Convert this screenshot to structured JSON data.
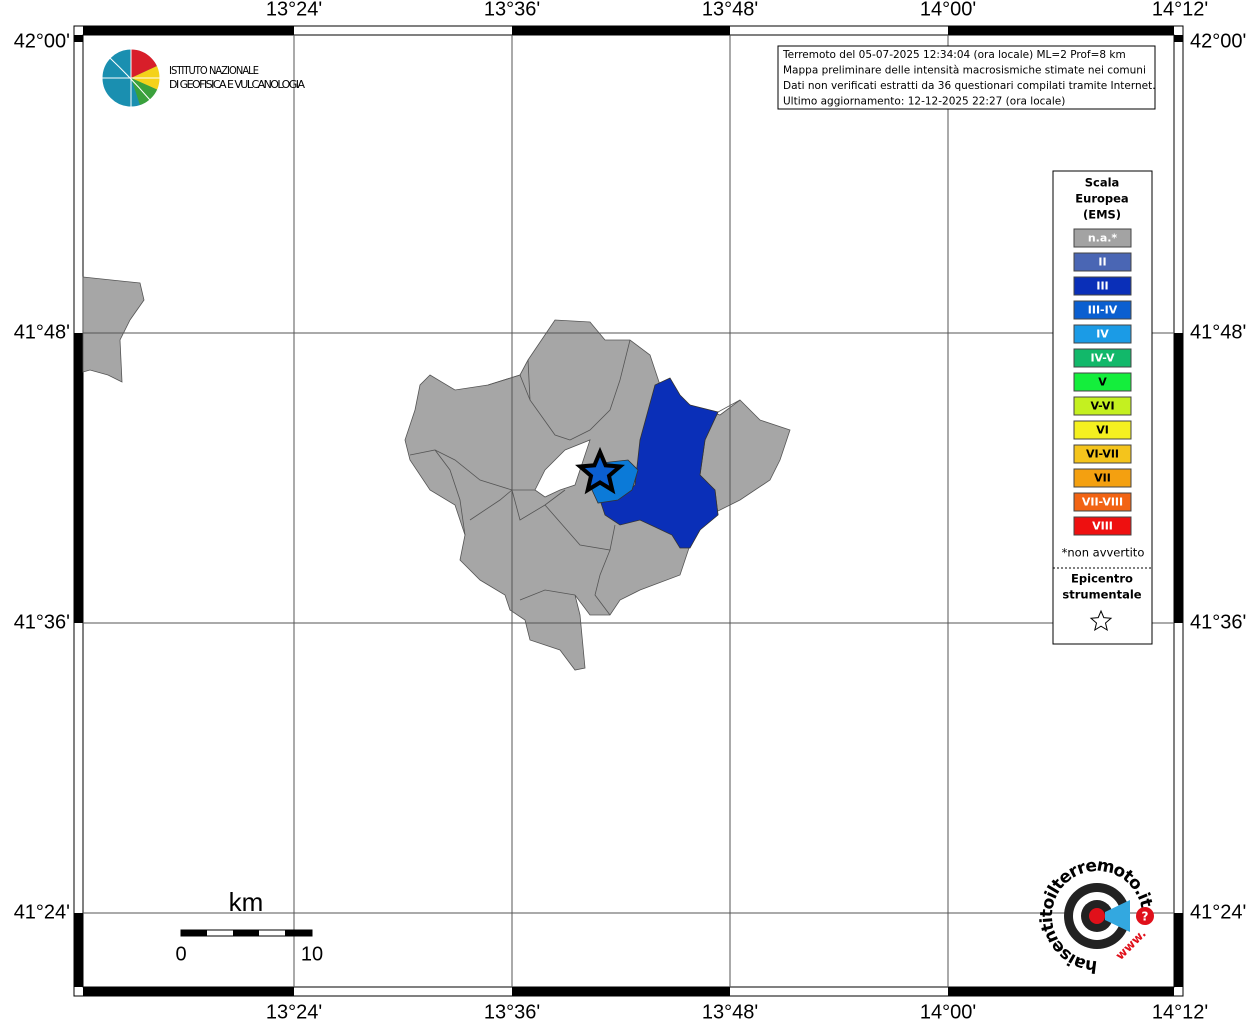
{
  "map": {
    "top_labels": [
      "13°24'",
      "13°36'",
      "13°48'",
      "14°00'",
      "14°12'"
    ],
    "bottom_labels": [
      "13°24'",
      "13°36'",
      "13°48'",
      "14°00'",
      "14°12'"
    ],
    "left_labels": [
      "42°00'",
      "41°48'",
      "41°36'",
      "41°24'"
    ],
    "right_labels": [
      "42°00'",
      "41°48'",
      "41°36'",
      "41°24'"
    ],
    "info": [
      "Terremoto del 05-07-2025 12:34:04 (ora locale) ML=2 Prof=8 km",
      "Mappa preliminare delle intensità macrosismiche stimate nei comuni",
      "Dati non verificati estratti da 36 questionari compilati tramite Internet.",
      "Ultimo aggiornamento: 12-12-2025 22:27 (ora locale)"
    ],
    "logo": [
      "ISTITUTO NAZIONALE",
      "DI GEOFISICA E VULCANOLOGIA"
    ],
    "legend": {
      "title": [
        "Scala",
        "Europea",
        "(EMS)"
      ],
      "items": [
        {
          "label": "n.a.*",
          "color": "#a3a3a3"
        },
        {
          "label": "II",
          "color": "#4a66b4"
        },
        {
          "label": "III",
          "color": "#0a2fb8"
        },
        {
          "label": "III-IV",
          "color": "#0b5fd0"
        },
        {
          "label": "IV",
          "color": "#1b9be6"
        },
        {
          "label": "IV-V",
          "color": "#12b86a"
        },
        {
          "label": "V",
          "color": "#14ee3c"
        },
        {
          "label": "V-VI",
          "color": "#c4f020"
        },
        {
          "label": "VI",
          "color": "#f4f020"
        },
        {
          "label": "VI-VII",
          "color": "#f4c41c"
        },
        {
          "label": "VII",
          "color": "#f4a010"
        },
        {
          "label": "VII-VIII",
          "color": "#f26414"
        },
        {
          "label": "VIII",
          "color": "#ee1010"
        }
      ],
      "note": "*non avvertito",
      "epicenter": [
        "Epicentro",
        "strumentale"
      ]
    },
    "scale": {
      "unit": "km",
      "labels": [
        "0",
        "10"
      ]
    },
    "brand": "haisentitoilterremoto.it",
    "brand_www": "www."
  }
}
